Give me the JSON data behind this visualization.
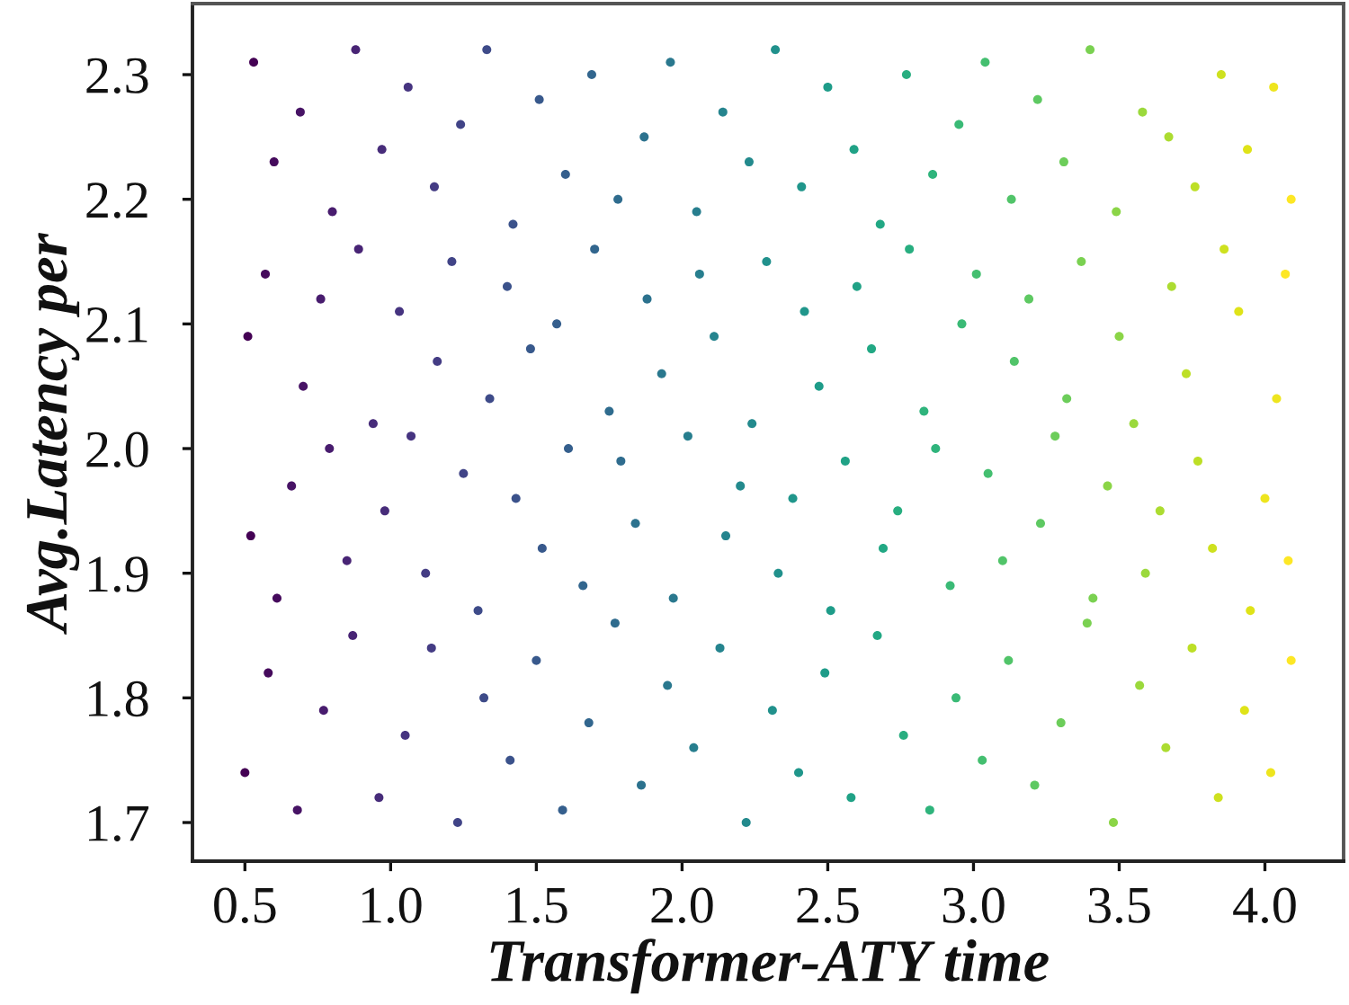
{
  "chart_data": {
    "type": "scatter",
    "xlabel": "Transformer-ATY time",
    "ylabel": "Avg.Latency per",
    "marker": "circle",
    "xlim": [
      0.32,
      4.27
    ],
    "ylim": [
      1.669,
      2.357
    ],
    "xticks": [
      0.5,
      {
        "value": 1,
        "label": "1.0"
      },
      1.5,
      {
        "value": 2,
        "label": "2.0"
      },
      2.5,
      {
        "value": 3,
        "label": "3.0"
      },
      3.5,
      {
        "value": 4,
        "label": "4.0"
      }
    ],
    "yticks": [
      1.7,
      1.8,
      1.9,
      {
        "value": 2,
        "label": "2.0"
      },
      2.1,
      2.2,
      2.3
    ],
    "x": [
      0.5,
      0.52,
      0.51,
      0.53,
      0.58,
      0.61,
      0.57,
      0.6,
      0.68,
      0.66,
      0.7,
      0.69,
      0.77,
      0.79,
      0.76,
      0.8,
      0.87,
      0.85,
      0.89,
      0.88,
      0.96,
      0.98,
      0.94,
      0.97,
      1.05,
      1.07,
      1.03,
      1.06,
      1.14,
      1.12,
      1.16,
      1.15,
      1.23,
      1.25,
      1.21,
      1.24,
      1.32,
      1.3,
      1.34,
      1.33,
      1.41,
      1.43,
      1.4,
      1.42,
      1.5,
      1.52,
      1.48,
      1.51,
      1.59,
      1.61,
      1.57,
      1.6,
      1.68,
      1.66,
      1.7,
      1.69,
      1.77,
      1.79,
      1.75,
      1.78,
      1.86,
      1.84,
      1.88,
      1.87,
      1.95,
      1.97,
      1.93,
      1.96,
      2.04,
      2.02,
      2.06,
      2.05,
      2.13,
      2.15,
      2.11,
      2.14,
      2.22,
      2.2,
      2.24,
      2.23,
      2.31,
      2.33,
      2.29,
      2.32,
      2.4,
      2.38,
      2.42,
      2.41,
      2.49,
      2.51,
      2.47,
      2.5,
      2.58,
      2.56,
      2.6,
      2.59,
      2.67,
      2.69,
      2.65,
      2.68,
      2.76,
      2.74,
      2.78,
      2.77,
      2.85,
      2.87,
      2.83,
      2.86,
      2.94,
      2.92,
      2.96,
      2.95,
      3.03,
      3.05,
      3.01,
      3.04,
      3.12,
      3.1,
      3.14,
      3.13,
      3.21,
      3.23,
      3.19,
      3.22,
      3.3,
      3.28,
      3.32,
      3.31,
      3.39,
      3.41,
      3.37,
      3.4,
      3.48,
      3.46,
      3.5,
      3.49,
      3.57,
      3.59,
      3.55,
      3.58,
      3.66,
      3.64,
      3.68,
      3.67,
      3.75,
      3.77,
      3.73,
      3.76,
      3.84,
      3.82,
      3.86,
      3.85,
      3.93,
      3.95,
      3.91,
      3.94,
      4.02,
      4.0,
      4.04,
      4.03,
      4.09,
      4.08,
      4.07,
      4.09
    ],
    "values": [
      1.74,
      1.93,
      2.09,
      2.31,
      1.82,
      1.88,
      2.14,
      2.23,
      1.71,
      1.97,
      2.05,
      2.27,
      1.79,
      2.0,
      2.12,
      2.19,
      1.85,
      1.91,
      2.16,
      2.32,
      1.72,
      1.95,
      2.02,
      2.24,
      1.77,
      2.01,
      2.11,
      2.29,
      1.84,
      1.9,
      2.07,
      2.21,
      1.7,
      1.98,
      2.15,
      2.26,
      1.8,
      1.87,
      2.04,
      2.32,
      1.75,
      1.96,
      2.13,
      2.18,
      1.83,
      1.92,
      2.08,
      2.28,
      1.71,
      2.0,
      2.1,
      2.22,
      1.78,
      1.89,
      2.16,
      2.3,
      1.86,
      1.99,
      2.03,
      2.2,
      1.73,
      1.94,
      2.12,
      2.25,
      1.81,
      1.88,
      2.06,
      2.31,
      1.76,
      2.01,
      2.14,
      2.19,
      1.84,
      1.93,
      2.09,
      2.27,
      1.7,
      1.97,
      2.02,
      2.23,
      1.79,
      1.9,
      2.15,
      2.32,
      1.74,
      1.96,
      2.11,
      2.21,
      1.82,
      1.87,
      2.05,
      2.29,
      1.72,
      1.99,
      2.13,
      2.24,
      1.85,
      1.92,
      2.08,
      2.18,
      1.77,
      1.95,
      2.16,
      2.3,
      1.71,
      2.0,
      2.03,
      2.22,
      1.8,
      1.89,
      2.1,
      2.26,
      1.75,
      1.98,
      2.14,
      2.31,
      1.83,
      1.91,
      2.07,
      2.2,
      1.73,
      1.94,
      2.12,
      2.28,
      1.78,
      2.01,
      2.04,
      2.23,
      1.86,
      1.88,
      2.15,
      2.32,
      1.7,
      1.97,
      2.09,
      2.19,
      1.81,
      1.9,
      2.02,
      2.27,
      1.76,
      1.95,
      2.13,
      2.25,
      1.84,
      1.99,
      2.06,
      2.21,
      1.72,
      1.92,
      2.16,
      2.3,
      1.79,
      1.87,
      2.11,
      2.24,
      1.74,
      1.96,
      2.04,
      2.29,
      1.83,
      1.91,
      2.14,
      2.2
    ],
    "colors": [
      "#440154",
      "#440154",
      "#440154",
      "#440154",
      "#450a5c",
      "#450a5c",
      "#450a5c",
      "#450a5c",
      "#471365",
      "#471365",
      "#471365",
      "#471365",
      "#481c6e",
      "#481c6e",
      "#481c6e",
      "#481c6e",
      "#482475",
      "#482475",
      "#482475",
      "#482475",
      "#472c7a",
      "#472c7a",
      "#472c7a",
      "#472c7a",
      "#463480",
      "#463480",
      "#463480",
      "#463480",
      "#443c84",
      "#443c84",
      "#443c84",
      "#443c84",
      "#414487",
      "#414487",
      "#414487",
      "#414487",
      "#3e4b89",
      "#3e4b89",
      "#3e4b89",
      "#3e4b89",
      "#3b528b",
      "#3b528b",
      "#3b528b",
      "#3b528b",
      "#38598c",
      "#38598c",
      "#38598c",
      "#38598c",
      "#355f8d",
      "#355f8d",
      "#355f8d",
      "#355f8d",
      "#32668e",
      "#32668e",
      "#32668e",
      "#32668e",
      "#2f6c8e",
      "#2f6c8e",
      "#2f6c8e",
      "#2f6c8e",
      "#2c728e",
      "#2c728e",
      "#2c728e",
      "#2c728e",
      "#2a788e",
      "#2a788e",
      "#2a788e",
      "#2a788e",
      "#277e8e",
      "#277e8e",
      "#277e8e",
      "#277e8e",
      "#25848e",
      "#25848e",
      "#25848e",
      "#25848e",
      "#238a8d",
      "#238a8d",
      "#238a8d",
      "#238a8d",
      "#21918c",
      "#21918c",
      "#21918c",
      "#21918c",
      "#20968b",
      "#20968b",
      "#20968b",
      "#20968b",
      "#1e9c89",
      "#1e9c89",
      "#1e9c89",
      "#1e9c89",
      "#20a286",
      "#20a286",
      "#20a286",
      "#20a286",
      "#22a884",
      "#22a884",
      "#22a884",
      "#22a884",
      "#28ae80",
      "#28ae80",
      "#28ae80",
      "#28ae80",
      "#2fb47c",
      "#2fb47c",
      "#2fb47c",
      "#2fb47c",
      "#3aba76",
      "#3aba76",
      "#3aba76",
      "#3aba76",
      "#44bf70",
      "#44bf70",
      "#44bf70",
      "#44bf70",
      "#51c469",
      "#51c469",
      "#51c469",
      "#51c469",
      "#5ec962",
      "#5ec962",
      "#5ec962",
      "#5ec962",
      "#6ccd5a",
      "#6ccd5a",
      "#6ccd5a",
      "#6ccd5a",
      "#7ad151",
      "#7ad151",
      "#7ad151",
      "#7ad151",
      "#8bd547",
      "#8bd547",
      "#8bd547",
      "#8bd547",
      "#9bd93c",
      "#9bd93c",
      "#9bd93c",
      "#9bd93c",
      "#acdc31",
      "#acdc31",
      "#acdc31",
      "#acdc31",
      "#bddf26",
      "#bddf26",
      "#bddf26",
      "#bddf26",
      "#cee11f",
      "#cee11f",
      "#cee11f",
      "#cee11f",
      "#dfe318",
      "#dfe318",
      "#dfe318",
      "#dfe318",
      "#eee51e",
      "#eee51e",
      "#eee51e",
      "#eee51e",
      "#fde725",
      "#fde725",
      "#fde725",
      "#fde725"
    ]
  }
}
